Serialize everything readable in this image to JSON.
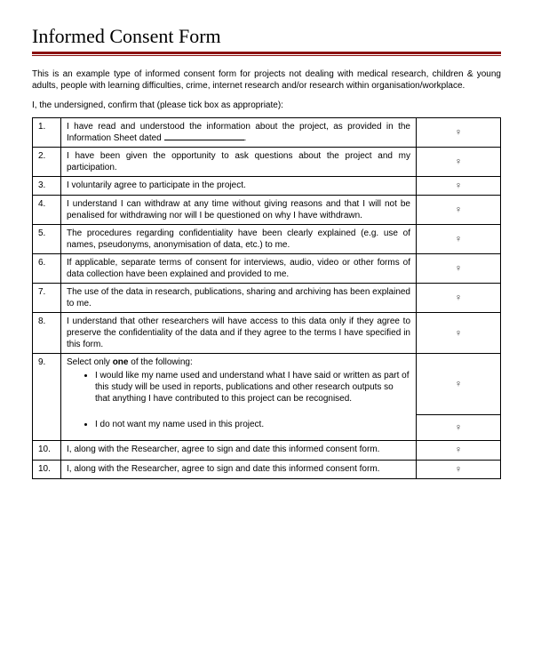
{
  "title": "Informed Consent Form",
  "intro": "This is an example type of informed consent form for projects not dealing with medical research, children & young adults, people with learning difficulties, crime, internet research and/or research within organisation/workplace.",
  "subintro": "I, the undersigned, confirm that (please tick box as appropriate):",
  "checkmark": "♀",
  "rows": [
    {
      "num": "1.",
      "text_pre": "I have read and understood the information about the project, as provided in the Information Sheet dated ",
      "has_blank": true,
      "text_post": "."
    },
    {
      "num": "2.",
      "text": "I have been given the opportunity to ask questions about the project and my participation."
    },
    {
      "num": "3.",
      "text": "I voluntarily agree to participate in the project."
    },
    {
      "num": "4.",
      "text": "I understand I can withdraw at any time without giving reasons and that I will not be penalised for withdrawing nor will I be questioned on why I have withdrawn."
    },
    {
      "num": "5.",
      "text": "The procedures regarding confidentiality have been clearly explained (e.g. use of names, pseudonyms, anonymisation of data, etc.) to me."
    },
    {
      "num": "6.",
      "text": "If applicable, separate terms of consent for interviews, audio, video or other forms of data collection have been explained and provided to me."
    },
    {
      "num": "7.",
      "text": "The use of the data in research, publications, sharing and archiving has been explained to me."
    },
    {
      "num": "8.",
      "text": "I understand that other researchers will have access to this data only if they agree to preserve the confidentiality of the data and if they agree to the terms I have specified in this form."
    }
  ],
  "row9": {
    "num": "9.",
    "lead_pre": "Select only ",
    "lead_bold": "one",
    "lead_post": " of the following:",
    "opt1": "I would like my name used and understand what I have said or written as part of this study will be used in reports, publications and other research outputs so that anything I have contributed to this project can be recognised.",
    "opt2": "I do not want my name used in this project."
  },
  "row10": {
    "num": "10.",
    "text": "I, along with the Researcher, agree to sign and date this informed consent form."
  },
  "row10b": {
    "num": "10.",
    "text": "I, along with the Researcher, agree to sign and date this informed consent form."
  },
  "colors": {
    "accent": "#8a1010",
    "text": "#000000",
    "background": "#ffffff"
  }
}
